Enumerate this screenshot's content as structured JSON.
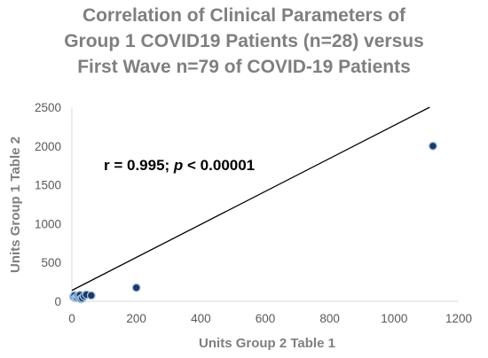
{
  "chart_data": {
    "type": "scatter",
    "title_lines": [
      "Correlation of Clinical Parameters of",
      "Group 1 COVID19 Patients (n=28) versus",
      "First Wave n=79 of COVID-19 Patients"
    ],
    "xlabel": "Units Group 2 Table 1",
    "ylabel": "Units Group 1 Table 2",
    "xlim": [
      0,
      1200
    ],
    "ylim": [
      0,
      2500
    ],
    "x_ticks": [
      "0",
      "200",
      "400",
      "600",
      "800",
      "1000",
      "1200"
    ],
    "y_ticks": [
      "0",
      "500",
      "1000",
      "1500",
      "2000",
      "2500"
    ],
    "grid": false,
    "legend": "none",
    "annotation": {
      "r_part": "r = 0.995; ",
      "p_letter": "p",
      "p_part": " < 0.00001"
    },
    "trendline": {
      "x": [
        0,
        1110
      ],
      "y": [
        140,
        2500
      ]
    },
    "series": [
      {
        "x": [
          5,
          8,
          12,
          15,
          18,
          22,
          25,
          28,
          32,
          38,
          45,
          60,
          200,
          1120
        ],
        "y": [
          60,
          75,
          45,
          50,
          70,
          55,
          80,
          30,
          40,
          65,
          85,
          75,
          175,
          2000
        ]
      }
    ],
    "colors": {
      "marker_fill": "#1f3864",
      "marker_stroke": "#9dc3e6",
      "trendline": "#000000"
    }
  }
}
